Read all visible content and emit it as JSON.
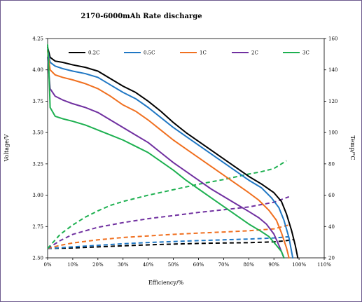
{
  "chart_data": {
    "type": "line",
    "title": "2170-6000mAh Rate discharge",
    "xlabel": "Efficiency/%",
    "ylabel": "Voltage/V",
    "y2label": "Temp/°C",
    "xlim": [
      0,
      110
    ],
    "ylim": [
      2.5,
      4.25
    ],
    "y2lim": [
      20,
      160
    ],
    "x_ticks": [
      0,
      10,
      20,
      30,
      40,
      50,
      60,
      70,
      80,
      90,
      100,
      110
    ],
    "x_tick_labels": [
      "0%",
      "10%",
      "20%",
      "30%",
      "40%",
      "50%",
      "60%",
      "70%",
      "80%",
      "90%",
      "100%",
      "110%"
    ],
    "y_ticks": [
      2.5,
      2.75,
      3.0,
      3.25,
      3.5,
      3.75,
      4.0,
      4.25
    ],
    "y_tick_labels": [
      "2.50",
      "2.75",
      "3.00",
      "3.25",
      "3.50",
      "3.75",
      "4.00",
      "4.25"
    ],
    "y2_ticks": [
      20,
      40,
      60,
      80,
      100,
      120,
      140,
      160
    ],
    "y2_tick_labels": [
      "20",
      "40",
      "60",
      "80",
      "100",
      "120",
      "140",
      "160"
    ],
    "grid": false,
    "legend_position": "top",
    "series": [
      {
        "name": "0.2C",
        "color": "#000000",
        "voltage": [
          [
            0,
            4.18
          ],
          [
            1,
            4.1
          ],
          [
            3,
            4.07
          ],
          [
            6,
            4.06
          ],
          [
            10,
            4.04
          ],
          [
            15,
            4.02
          ],
          [
            20,
            3.99
          ],
          [
            25,
            3.93
          ],
          [
            30,
            3.87
          ],
          [
            35,
            3.82
          ],
          [
            40,
            3.75
          ],
          [
            45,
            3.67
          ],
          [
            50,
            3.58
          ],
          [
            55,
            3.5
          ],
          [
            60,
            3.43
          ],
          [
            65,
            3.36
          ],
          [
            70,
            3.29
          ],
          [
            75,
            3.22
          ],
          [
            80,
            3.15
          ],
          [
            85,
            3.09
          ],
          [
            90,
            3.02
          ],
          [
            93,
            2.95
          ],
          [
            95,
            2.85
          ],
          [
            97,
            2.72
          ],
          [
            98.5,
            2.6
          ],
          [
            99.5,
            2.5
          ]
        ],
        "temp": [
          [
            0,
            26
          ],
          [
            10,
            26.3
          ],
          [
            20,
            27
          ],
          [
            30,
            27.7
          ],
          [
            40,
            28.3
          ],
          [
            50,
            28.8
          ],
          [
            60,
            29.2
          ],
          [
            70,
            29.5
          ],
          [
            80,
            29.7
          ],
          [
            90,
            30.2
          ],
          [
            95,
            31
          ],
          [
            98,
            31.7
          ]
        ]
      },
      {
        "name": "0.5C",
        "color": "#1f77c4",
        "voltage": [
          [
            0,
            4.16
          ],
          [
            1,
            4.06
          ],
          [
            3,
            4.03
          ],
          [
            6,
            4.01
          ],
          [
            10,
            3.99
          ],
          [
            15,
            3.97
          ],
          [
            20,
            3.94
          ],
          [
            25,
            3.88
          ],
          [
            30,
            3.82
          ],
          [
            35,
            3.77
          ],
          [
            40,
            3.7
          ],
          [
            45,
            3.62
          ],
          [
            50,
            3.54
          ],
          [
            55,
            3.47
          ],
          [
            60,
            3.4
          ],
          [
            65,
            3.33
          ],
          [
            70,
            3.26
          ],
          [
            75,
            3.19
          ],
          [
            80,
            3.12
          ],
          [
            85,
            3.06
          ],
          [
            89,
            2.98
          ],
          [
            92,
            2.9
          ],
          [
            94,
            2.8
          ],
          [
            96,
            2.66
          ],
          [
            97.5,
            2.5
          ]
        ],
        "temp": [
          [
            0,
            26
          ],
          [
            10,
            27
          ],
          [
            20,
            28
          ],
          [
            30,
            29
          ],
          [
            40,
            29.8
          ],
          [
            50,
            30.4
          ],
          [
            60,
            31
          ],
          [
            70,
            31.5
          ],
          [
            80,
            32
          ],
          [
            90,
            32.7
          ],
          [
            96,
            33.5
          ]
        ]
      },
      {
        "name": "1C",
        "color": "#f07020",
        "voltage": [
          [
            0,
            4.15
          ],
          [
            1,
            4.0
          ],
          [
            3,
            3.96
          ],
          [
            6,
            3.94
          ],
          [
            10,
            3.92
          ],
          [
            15,
            3.89
          ],
          [
            20,
            3.85
          ],
          [
            25,
            3.79
          ],
          [
            30,
            3.72
          ],
          [
            35,
            3.67
          ],
          [
            40,
            3.6
          ],
          [
            45,
            3.52
          ],
          [
            50,
            3.44
          ],
          [
            55,
            3.37
          ],
          [
            60,
            3.3
          ],
          [
            65,
            3.23
          ],
          [
            70,
            3.16
          ],
          [
            75,
            3.09
          ],
          [
            80,
            3.02
          ],
          [
            84,
            2.96
          ],
          [
            88,
            2.88
          ],
          [
            91,
            2.8
          ],
          [
            93,
            2.7
          ],
          [
            95,
            2.58
          ],
          [
            96,
            2.5
          ]
        ],
        "temp": [
          [
            0,
            26
          ],
          [
            5,
            28
          ],
          [
            10,
            29.5
          ],
          [
            20,
            31.5
          ],
          [
            30,
            33
          ],
          [
            40,
            34
          ],
          [
            50,
            35
          ],
          [
            60,
            35.8
          ],
          [
            70,
            36.5
          ],
          [
            80,
            37.3
          ],
          [
            90,
            38.5
          ],
          [
            96,
            41
          ]
        ]
      },
      {
        "name": "2C",
        "color": "#7030a0",
        "voltage": [
          [
            0,
            4.1
          ],
          [
            1,
            3.85
          ],
          [
            3,
            3.79
          ],
          [
            6,
            3.76
          ],
          [
            10,
            3.73
          ],
          [
            15,
            3.7
          ],
          [
            20,
            3.66
          ],
          [
            25,
            3.6
          ],
          [
            30,
            3.54
          ],
          [
            35,
            3.48
          ],
          [
            40,
            3.42
          ],
          [
            45,
            3.34
          ],
          [
            50,
            3.26
          ],
          [
            55,
            3.19
          ],
          [
            60,
            3.12
          ],
          [
            65,
            3.05
          ],
          [
            70,
            2.99
          ],
          [
            75,
            2.93
          ],
          [
            80,
            2.87
          ],
          [
            84,
            2.82
          ],
          [
            87,
            2.77
          ],
          [
            90,
            2.69
          ],
          [
            92,
            2.6
          ],
          [
            94,
            2.5
          ]
        ],
        "temp": [
          [
            0,
            26
          ],
          [
            5,
            31
          ],
          [
            10,
            35
          ],
          [
            20,
            39.5
          ],
          [
            30,
            42.5
          ],
          [
            40,
            45
          ],
          [
            50,
            47
          ],
          [
            60,
            49
          ],
          [
            70,
            50.7
          ],
          [
            80,
            52.5
          ],
          [
            90,
            55.5
          ],
          [
            96,
            59
          ]
        ]
      },
      {
        "name": "3C",
        "color": "#1db050",
        "voltage": [
          [
            0,
            4.2
          ],
          [
            0.5,
            4.0
          ],
          [
            1,
            3.7
          ],
          [
            3,
            3.63
          ],
          [
            6,
            3.61
          ],
          [
            10,
            3.59
          ],
          [
            15,
            3.56
          ],
          [
            20,
            3.52
          ],
          [
            25,
            3.48
          ],
          [
            30,
            3.44
          ],
          [
            35,
            3.39
          ],
          [
            40,
            3.34
          ],
          [
            45,
            3.27
          ],
          [
            50,
            3.2
          ],
          [
            55,
            3.12
          ],
          [
            60,
            3.05
          ],
          [
            65,
            2.98
          ],
          [
            70,
            2.91
          ],
          [
            75,
            2.84
          ],
          [
            80,
            2.77
          ],
          [
            85,
            2.71
          ],
          [
            88,
            2.67
          ],
          [
            91,
            2.6
          ],
          [
            93,
            2.55
          ],
          [
            94,
            2.5
          ]
        ],
        "temp": [
          [
            0,
            26
          ],
          [
            5,
            35
          ],
          [
            10,
            41
          ],
          [
            15,
            46
          ],
          [
            20,
            50
          ],
          [
            25,
            53.5
          ],
          [
            30,
            56
          ],
          [
            40,
            60
          ],
          [
            50,
            63.5
          ],
          [
            60,
            67
          ],
          [
            70,
            70
          ],
          [
            80,
            73.5
          ],
          [
            85,
            75
          ],
          [
            90,
            77
          ],
          [
            95,
            82
          ]
        ]
      }
    ]
  }
}
